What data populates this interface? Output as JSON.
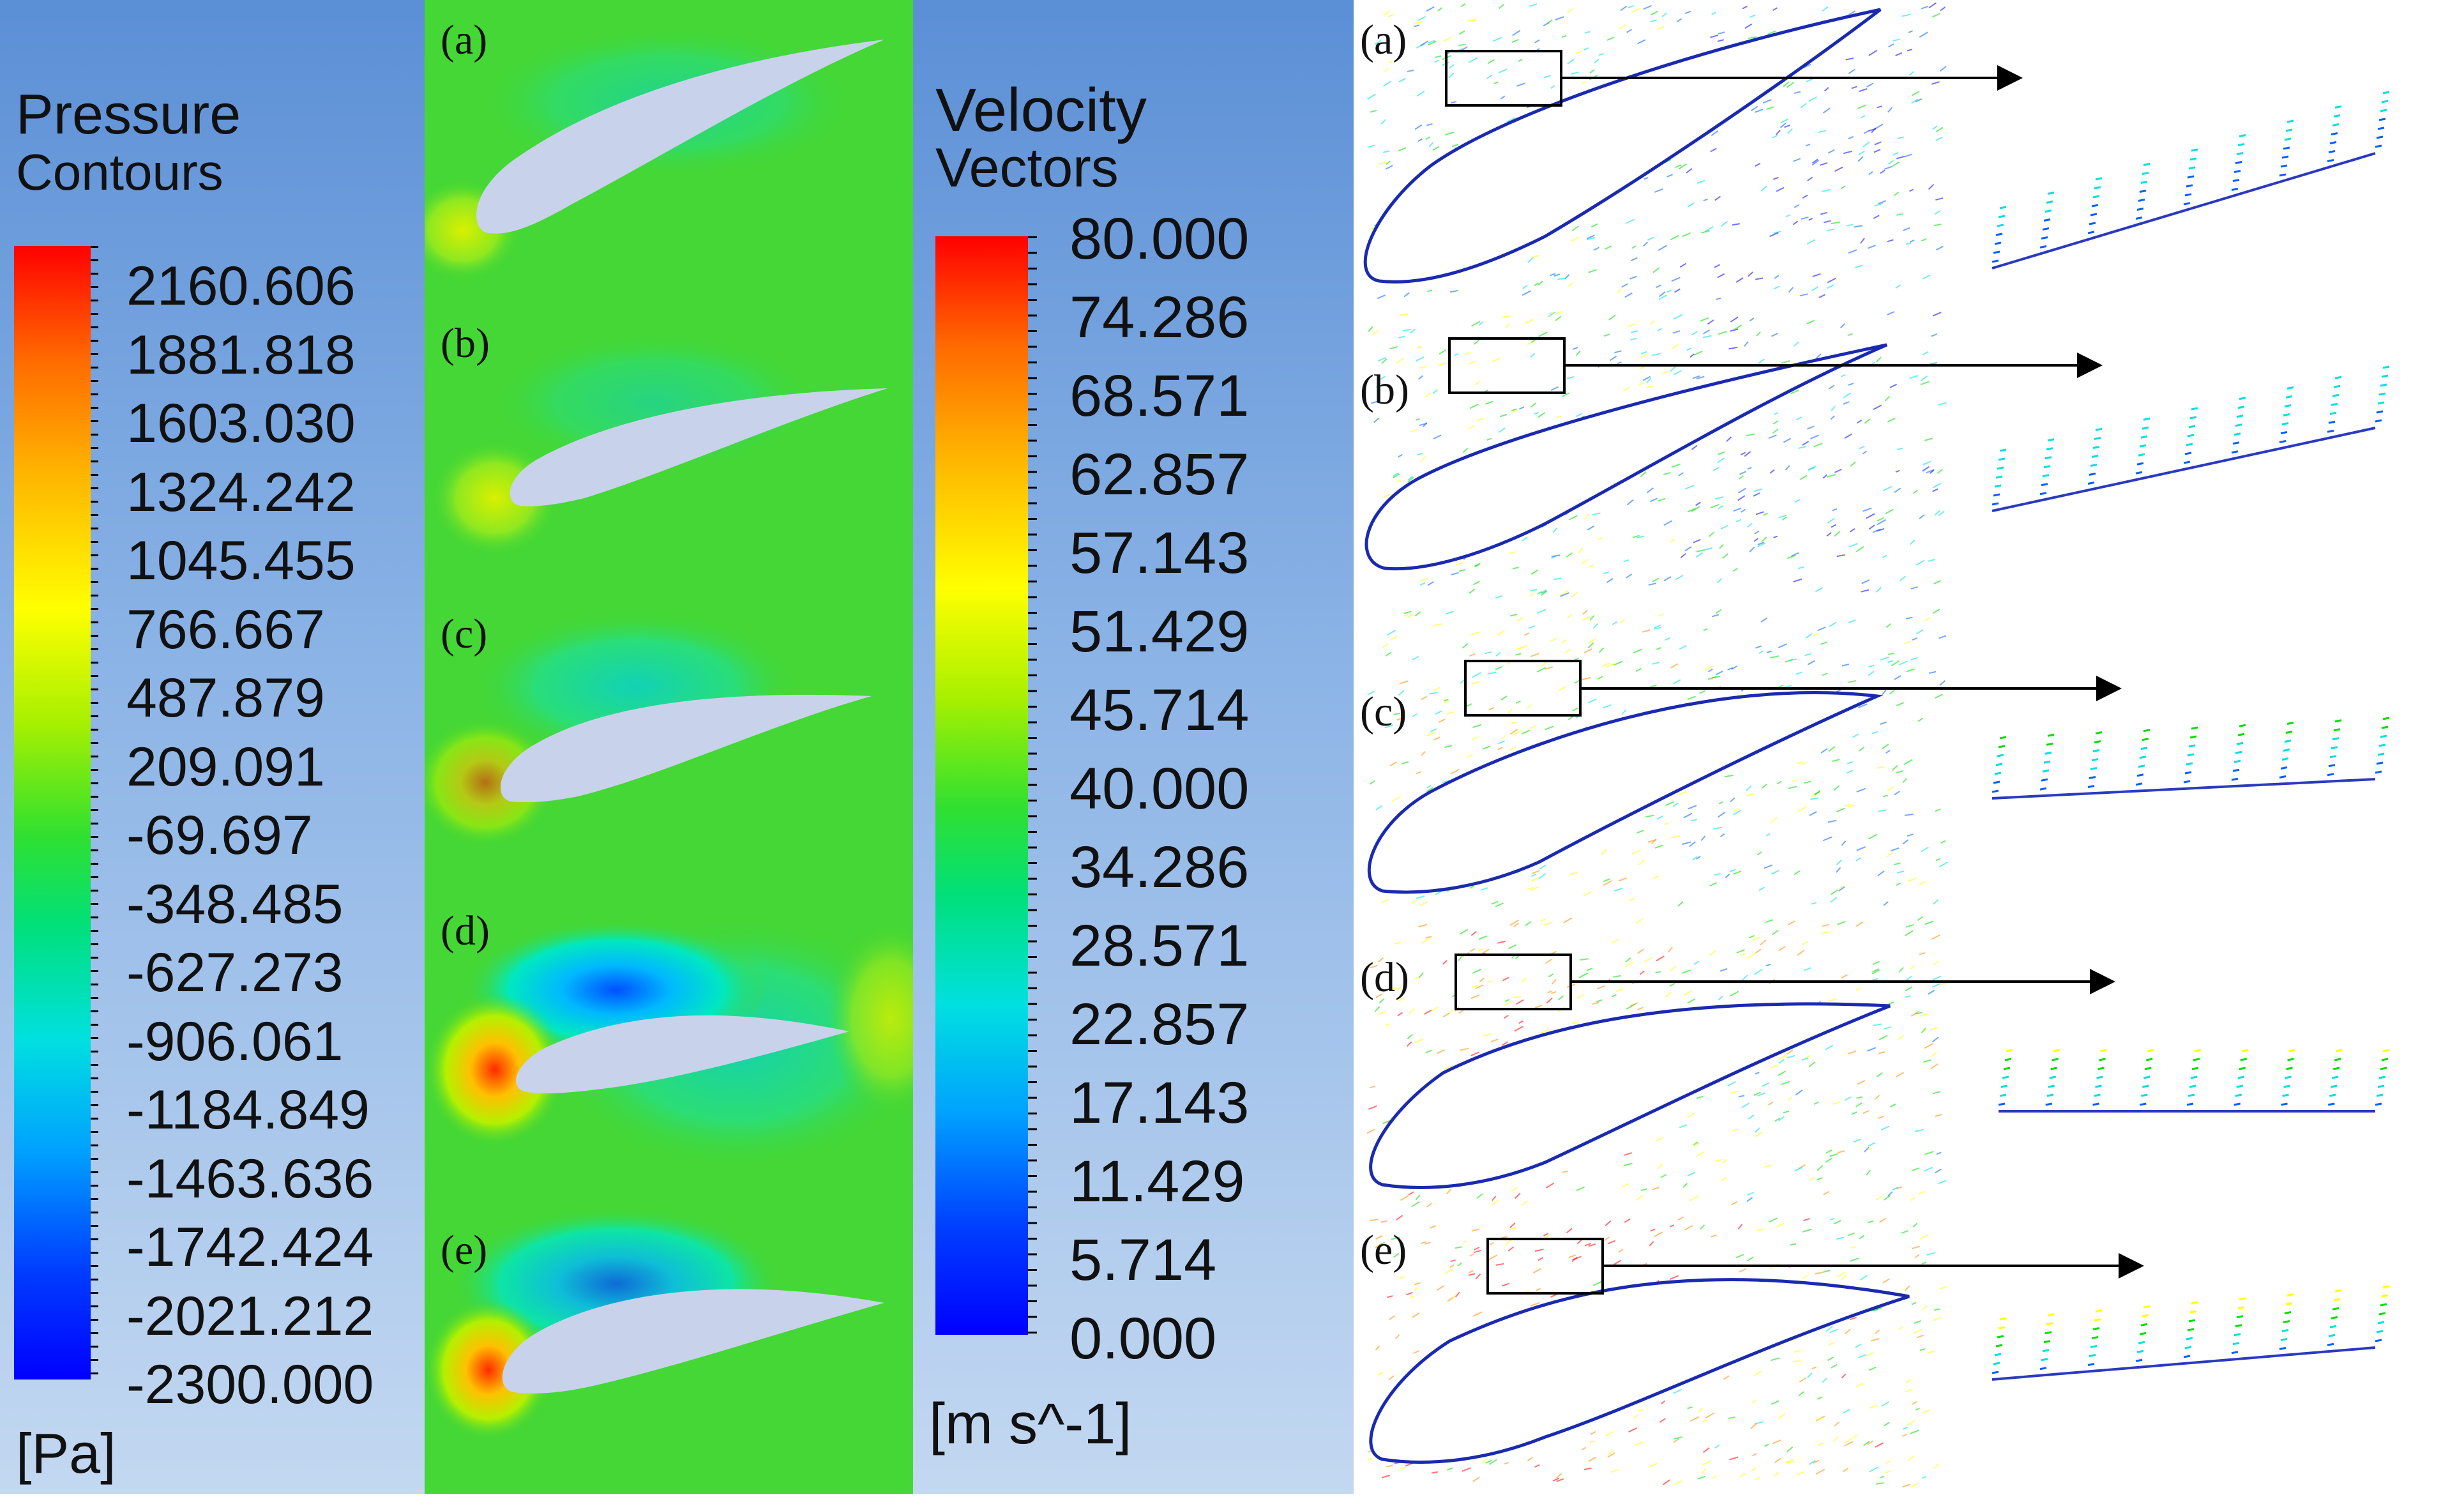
{
  "pressure_legend": {
    "title_line1": "Pressure",
    "title_line2": "Contours",
    "ticks": [
      "2160.606",
      "1881.818",
      "1603.030",
      "1324.242",
      "1045.455",
      "766.667",
      "487.879",
      "209.091",
      "-69.697",
      "-348.485",
      "-627.273",
      "-906.061",
      "-1184.849",
      "-1463.636",
      "-1742.424",
      "-2021.212",
      "-2300.000"
    ],
    "unit": "[Pa]"
  },
  "velocity_legend": {
    "title_line1": "Velocity",
    "title_line2": "Vectors",
    "ticks": [
      "80.000",
      "74.286",
      "68.571",
      "62.857",
      "57.143",
      "51.429",
      "45.714",
      "40.000",
      "34.286",
      "28.571",
      "22.857",
      "17.143",
      "11.429",
      "5.714",
      "0.000"
    ],
    "unit": "[m s^-1]"
  },
  "contour_panels": [
    {
      "label": "(a)"
    },
    {
      "label": "(b)"
    },
    {
      "label": "(c)"
    },
    {
      "label": "(d)"
    },
    {
      "label": "(e)"
    }
  ],
  "vector_panels": [
    {
      "label": "(a)"
    },
    {
      "label": "(b)"
    },
    {
      "label": "(c)"
    },
    {
      "label": "(d)"
    },
    {
      "label": "(e)"
    }
  ],
  "colors": {
    "colormap": [
      "#ff0000",
      "#ff8c00",
      "#ffff00",
      "#00e000",
      "#00e0e0",
      "#0060ff",
      "#0000ff"
    ],
    "airfoil_fill": "#c8d2ea",
    "field_green": "#45d735"
  }
}
